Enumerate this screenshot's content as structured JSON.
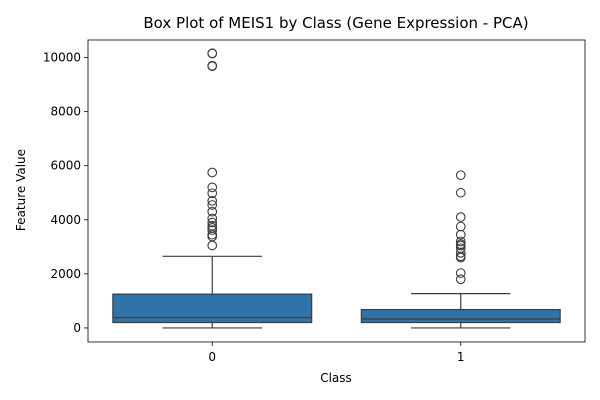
{
  "chart_data": {
    "type": "box",
    "title": "Box Plot of MEIS1 by Class (Gene Expression - PCA)",
    "xlabel": "Class",
    "ylabel": "Feature Value",
    "categories": [
      "0",
      "1"
    ],
    "ylim": [
      -520,
      10650
    ],
    "yticks": [
      0,
      2000,
      4000,
      6000,
      8000,
      10000
    ],
    "grid": false,
    "box_color": "#2f73a8",
    "boxes": [
      {
        "category": "0",
        "whisker_low": 0,
        "q1": 200,
        "median": 380,
        "q3": 1250,
        "whisker_high": 2650,
        "outliers": [
          3050,
          3380,
          3450,
          3620,
          3700,
          3780,
          3900,
          4050,
          4300,
          4550,
          4700,
          4980,
          5200,
          5750,
          9680,
          9700,
          10150,
          10160
        ]
      },
      {
        "category": "1",
        "whisker_low": 0,
        "q1": 200,
        "median": 330,
        "q3": 680,
        "whisker_high": 1270,
        "outliers": [
          1800,
          2030,
          2600,
          2650,
          2780,
          2950,
          3050,
          3100,
          3200,
          3450,
          3750,
          4100,
          5000,
          5650
        ]
      }
    ]
  }
}
